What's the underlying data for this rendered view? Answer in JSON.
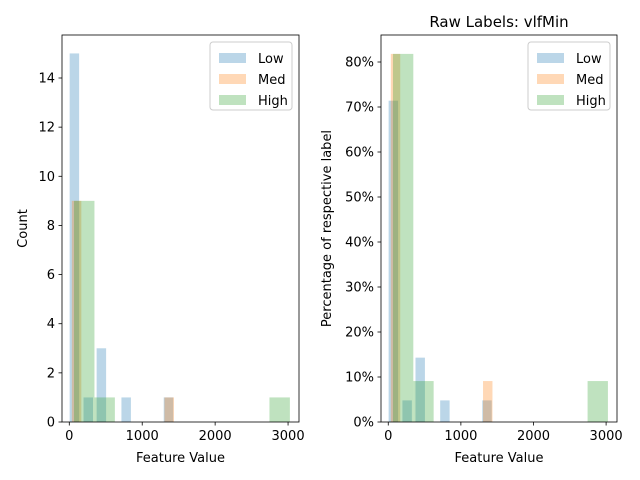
{
  "chart_data": [
    {
      "type": "bar",
      "title": "",
      "xlabel": "Feature Value",
      "ylabel": "Count",
      "xlim": [
        -100,
        3150
      ],
      "ylim": [
        0,
        15.75
      ],
      "xticks": [
        0,
        1000,
        2000,
        3000
      ],
      "yticks": [
        0,
        2,
        4,
        6,
        8,
        10,
        12,
        14
      ],
      "ytick_format": "int",
      "legend_position": "top-right",
      "series": [
        {
          "name": "Low",
          "color": "#1f77b4",
          "bins": [
            [
              5,
              15
            ],
            [
              195,
              1
            ],
            [
              375,
              3
            ],
            [
              715,
              1
            ],
            [
              1295,
              1
            ]
          ],
          "bin_width": 130
        },
        {
          "name": "Med",
          "color": "#ff7f0e",
          "bins": [
            [
              35,
              9
            ],
            [
              1305,
              1
            ]
          ],
          "bin_width": 130
        },
        {
          "name": "High",
          "color": "#2ca02c",
          "bins": [
            [
              65,
              9
            ],
            [
              345,
              1
            ],
            [
              2745,
              1
            ]
          ],
          "bin_width": 280
        }
      ]
    },
    {
      "type": "bar",
      "title": "Raw Labels: vlfMin",
      "xlabel": "Feature Value",
      "ylabel": "Percentage of respective label",
      "xlim": [
        -100,
        3150
      ],
      "ylim": [
        0,
        0.86
      ],
      "xticks": [
        0,
        1000,
        2000,
        3000
      ],
      "yticks": [
        0,
        0.1,
        0.2,
        0.3,
        0.4,
        0.5,
        0.6,
        0.7,
        0.8
      ],
      "ytick_format": "percent",
      "legend_position": "top-right",
      "series": [
        {
          "name": "Low",
          "color": "#1f77b4",
          "bins": [
            [
              5,
              0.714
            ],
            [
              195,
              0.048
            ],
            [
              375,
              0.143
            ],
            [
              715,
              0.048
            ],
            [
              1295,
              0.048
            ]
          ],
          "bin_width": 130
        },
        {
          "name": "Med",
          "color": "#ff7f0e",
          "bins": [
            [
              35,
              0.818
            ],
            [
              1305,
              0.091
            ]
          ],
          "bin_width": 130
        },
        {
          "name": "High",
          "color": "#2ca02c",
          "bins": [
            [
              65,
              0.818
            ],
            [
              345,
              0.091
            ],
            [
              2745,
              0.091
            ]
          ],
          "bin_width": 280
        }
      ]
    }
  ]
}
